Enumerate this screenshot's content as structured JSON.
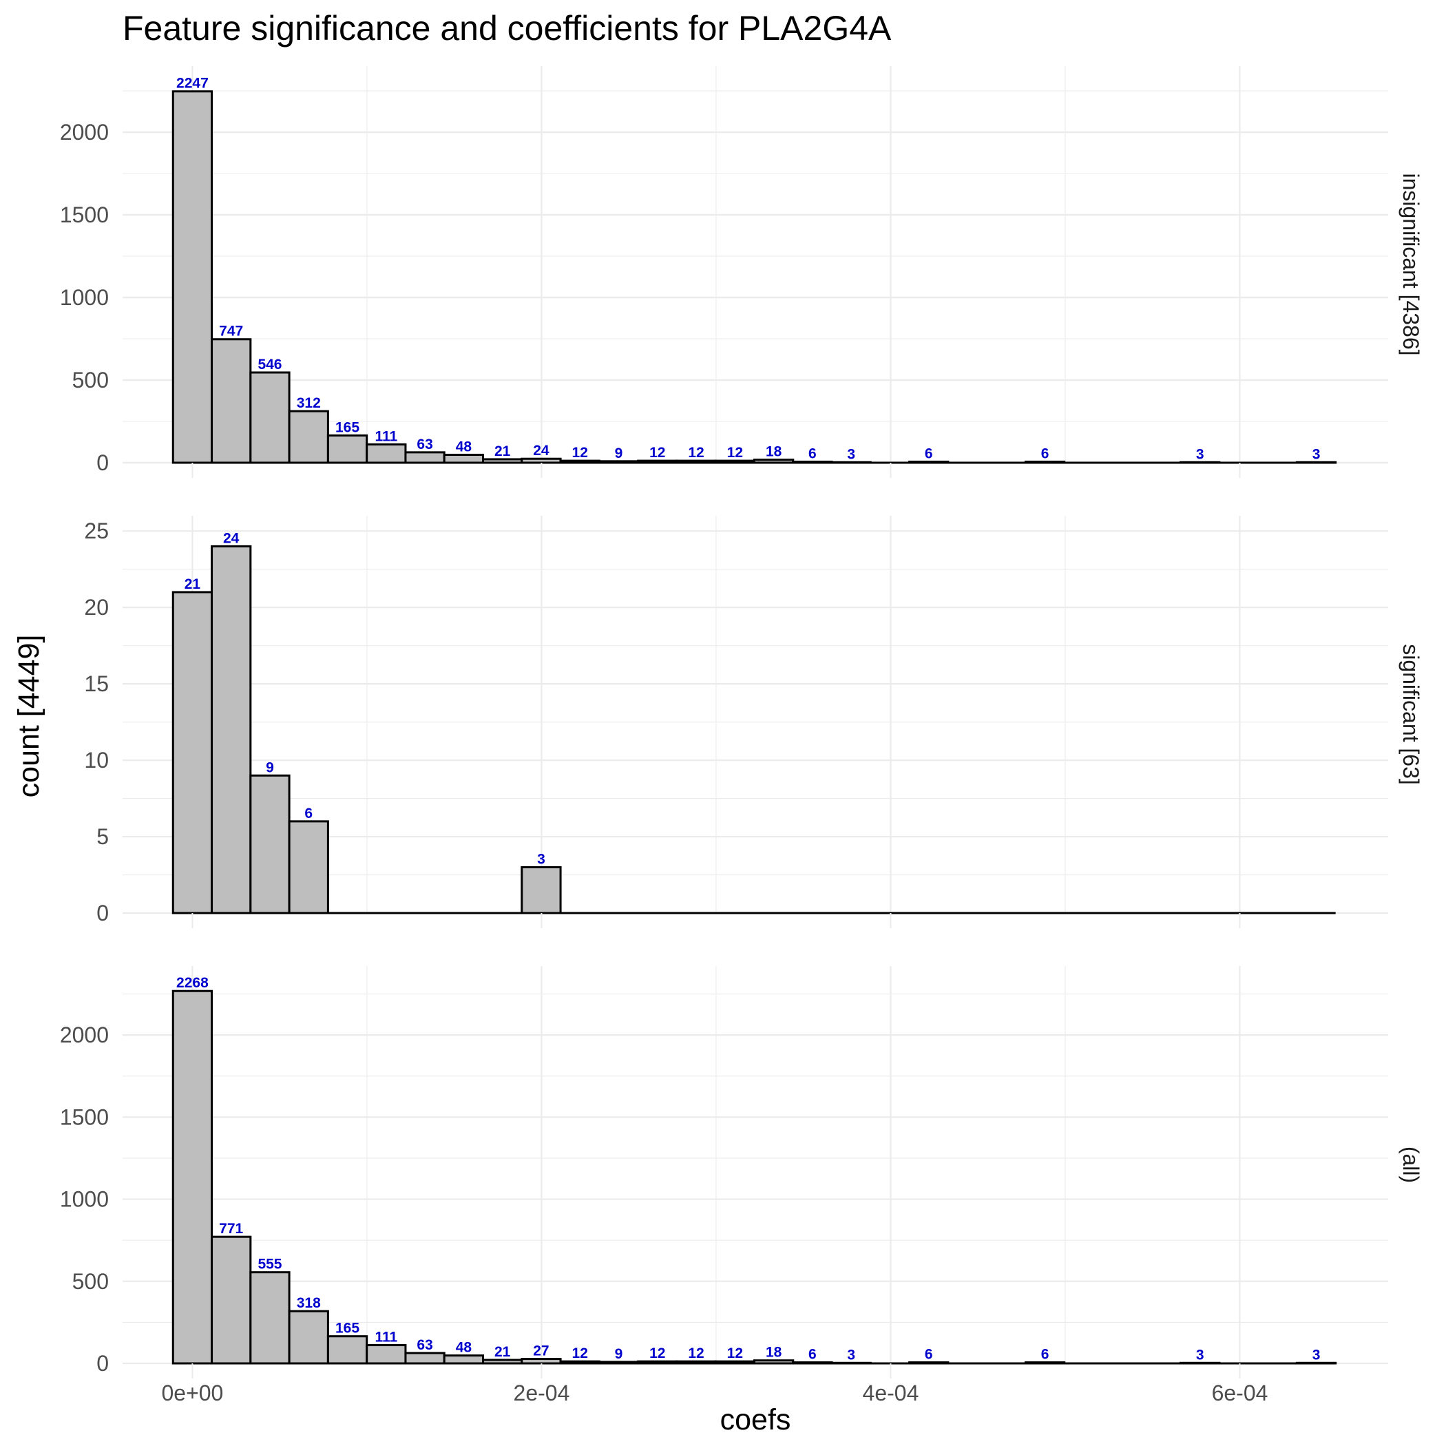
{
  "chart_data": {
    "type": "bar",
    "title": "Feature significance and coefficients for PLA2G4A",
    "xlabel": "coefs",
    "ylabel": "count [4449]",
    "xlim": [
      -4e-05,
      0.000685
    ],
    "x_ticks": [
      0,
      0.0002,
      0.0004,
      0.0006
    ],
    "x_tick_labels": [
      "0e+00",
      "2e-04",
      "4e-04",
      "6e-04"
    ],
    "bin_width": 2.22e-05,
    "bin_start": -1.11e-05,
    "bin_count": 30,
    "grid": true,
    "bar_fill": "#bebebe",
    "bar_stroke": "#000000",
    "label_color": "#0000cd",
    "panels": [
      {
        "strip": "insignificant [4386]",
        "ylim": [
          0,
          2400
        ],
        "y_ticks": [
          0,
          500,
          1000,
          1500,
          2000
        ],
        "y_tick_labels": [
          "0",
          "500",
          "1000",
          "1500",
          "2000"
        ],
        "values": [
          2247,
          747,
          546,
          312,
          165,
          111,
          63,
          48,
          21,
          24,
          12,
          9,
          12,
          12,
          12,
          18,
          6,
          3,
          0,
          6,
          0,
          0,
          6,
          0,
          0,
          0,
          3,
          0,
          0,
          3
        ]
      },
      {
        "strip": "significant [63]",
        "ylim": [
          0,
          26
        ],
        "y_ticks": [
          0,
          5,
          10,
          15,
          20,
          25
        ],
        "y_tick_labels": [
          "0",
          "5",
          "10",
          "15",
          "20",
          "25"
        ],
        "values": [
          21,
          24,
          9,
          6,
          0,
          0,
          0,
          0,
          0,
          3,
          0,
          0,
          0,
          0,
          0,
          0,
          0,
          0,
          0,
          0,
          0,
          0,
          0,
          0,
          0,
          0,
          0,
          0,
          0,
          0
        ]
      },
      {
        "strip": "(all)",
        "ylim": [
          0,
          2420
        ],
        "y_ticks": [
          0,
          500,
          1000,
          1500,
          2000
        ],
        "y_tick_labels": [
          "0",
          "500",
          "1000",
          "1500",
          "2000"
        ],
        "values": [
          2268,
          771,
          555,
          318,
          165,
          111,
          63,
          48,
          21,
          27,
          12,
          9,
          12,
          12,
          12,
          18,
          6,
          3,
          0,
          6,
          0,
          0,
          6,
          0,
          0,
          0,
          3,
          0,
          0,
          3
        ]
      }
    ]
  }
}
